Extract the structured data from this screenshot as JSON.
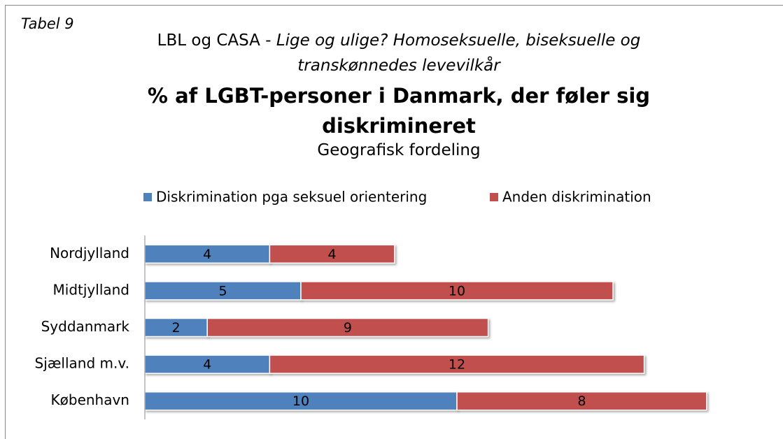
{
  "chart_data": {
    "type": "stacked_bar_horizontal",
    "tag": "Tabel 9",
    "source_prefix": "LBL og CASA - ",
    "source_italic": "Lige og ulige? Homoseksuelle, biseksuelle og transkønnedes levevilkår",
    "title": "% af LGBT-personer i Danmark, der føler sig diskrimineret",
    "subtitle": "Geografisk fordeling",
    "categories": [
      "Nordjylland",
      "Midtjylland",
      "Syddanmark",
      "Sjælland m.v.",
      "København"
    ],
    "series": [
      {
        "name": "Diskrimination pga seksuel orientering",
        "color": "#4f81bd",
        "values": [
          4,
          5,
          2,
          4,
          10
        ]
      },
      {
        "name": "Anden diskrimination",
        "color": "#c0504d",
        "values": [
          4,
          10,
          9,
          12,
          8
        ]
      }
    ],
    "xlim": [
      0,
      20
    ],
    "legend": "top"
  }
}
